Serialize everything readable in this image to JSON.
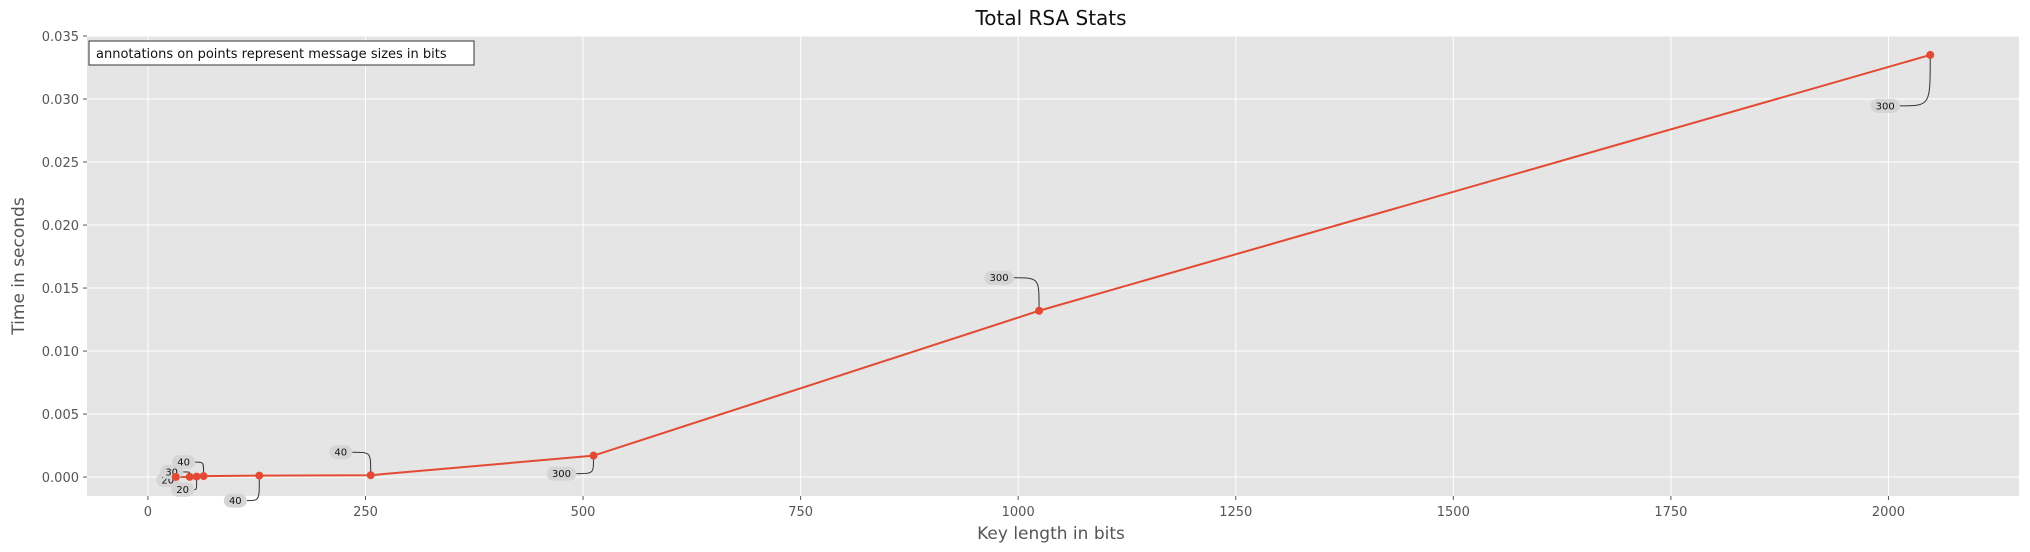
{
  "chart_data": {
    "type": "line",
    "title": "Total RSA Stats",
    "xlabel": "Key length in bits",
    "ylabel": "Time in seconds",
    "xlim": [
      -70,
      2150
    ],
    "ylim": [
      -0.0015,
      0.035
    ],
    "x_ticks": [
      0,
      250,
      500,
      750,
      1000,
      1250,
      1500,
      1750,
      2000
    ],
    "y_ticks": [
      0.0,
      0.005,
      0.01,
      0.015,
      0.02,
      0.025,
      0.03,
      0.035
    ],
    "x_tick_labels": [
      "0",
      "250",
      "500",
      "750",
      "1000",
      "1250",
      "1500",
      "1750",
      "2000"
    ],
    "y_tick_labels": [
      "0.000",
      "0.005",
      "0.010",
      "0.015",
      "0.020",
      "0.025",
      "0.030",
      "0.035"
    ],
    "grid": true,
    "note": "annotations on points represent message sizes in bits",
    "colors": {
      "line": "#E24A33",
      "background": "#E5E5E5",
      "grid": "#FFFFFF"
    },
    "series": [
      {
        "x": [
          32,
          48,
          56,
          64,
          128,
          256,
          512,
          1024,
          2048
        ],
        "y": [
          1e-05,
          2e-05,
          4e-05,
          8e-05,
          0.00012,
          0.00015,
          0.0017,
          0.0132,
          0.0335
        ],
        "annotations": [
          "20",
          "30",
          "20",
          "40",
          "40",
          "40",
          "300",
          "300",
          "300"
        ]
      }
    ]
  }
}
